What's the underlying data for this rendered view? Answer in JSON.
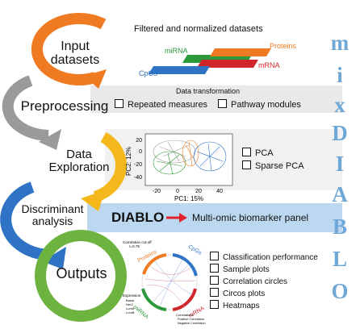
{
  "stages": [
    {
      "label": "Input\ndatasets",
      "color": "#f07a22"
    },
    {
      "label": "Preprocessing",
      "color": "#9a9a9a"
    },
    {
      "label": "Data\nExploration",
      "color": "#f5b81c"
    },
    {
      "label": "Discriminant\nanalysis",
      "color": "#2e73c4"
    },
    {
      "label": "Outputs",
      "color": "#6cb33f"
    }
  ],
  "input": {
    "title": "Filtered and normalized datasets",
    "datasets": [
      {
        "label": "miRNA",
        "color": "#2c9a3a"
      },
      {
        "label": "Proteins",
        "color": "#f07a22"
      },
      {
        "label": "mRNA",
        "color": "#d0262b"
      },
      {
        "label": "CpGs",
        "color": "#2e73c4"
      }
    ]
  },
  "preprocessing": {
    "title": "Data transformation",
    "options": [
      "Repeated measures",
      "Pathway modules"
    ]
  },
  "exploration": {
    "options": [
      "PCA",
      "Sparse PCA"
    ],
    "plot": {
      "xlabel": "PC1: 15%",
      "ylabel": "PC2: 12%",
      "xticks": [
        "-20",
        "0",
        "20",
        "40"
      ],
      "yticks": [
        "20",
        "0",
        "-20",
        "-40"
      ]
    }
  },
  "discriminant": {
    "method": "DIABLO",
    "result": "Multi-omic biomarker panel",
    "arrow_color": "#e0242a"
  },
  "outputs": {
    "options": [
      "Classification performance",
      "Sample plots",
      "Correlation circles",
      "Circos plots",
      "Heatmaps"
    ],
    "circos": {
      "cutoff_label": "Correlation cut-off",
      "cutoff_value": "r=0.75",
      "blocks": [
        "Proteins",
        "CpGs",
        "mRNA",
        "miRNA"
      ],
      "expression_title": "Expression",
      "expression_items": [
        "Basal",
        "Her2",
        "LumA",
        "LumB"
      ],
      "correlation_title": "Correlations",
      "correlation_items": [
        "Positive Correlation",
        "Negative Correlation"
      ]
    }
  },
  "brand_letters": [
    "m",
    "i",
    "x",
    "D",
    "I",
    "A",
    "B",
    "L",
    "O"
  ],
  "colors": {
    "band": "#e9e9e9",
    "discriminant_band": "#bcd7f0",
    "brand": "#6fa8d6"
  }
}
